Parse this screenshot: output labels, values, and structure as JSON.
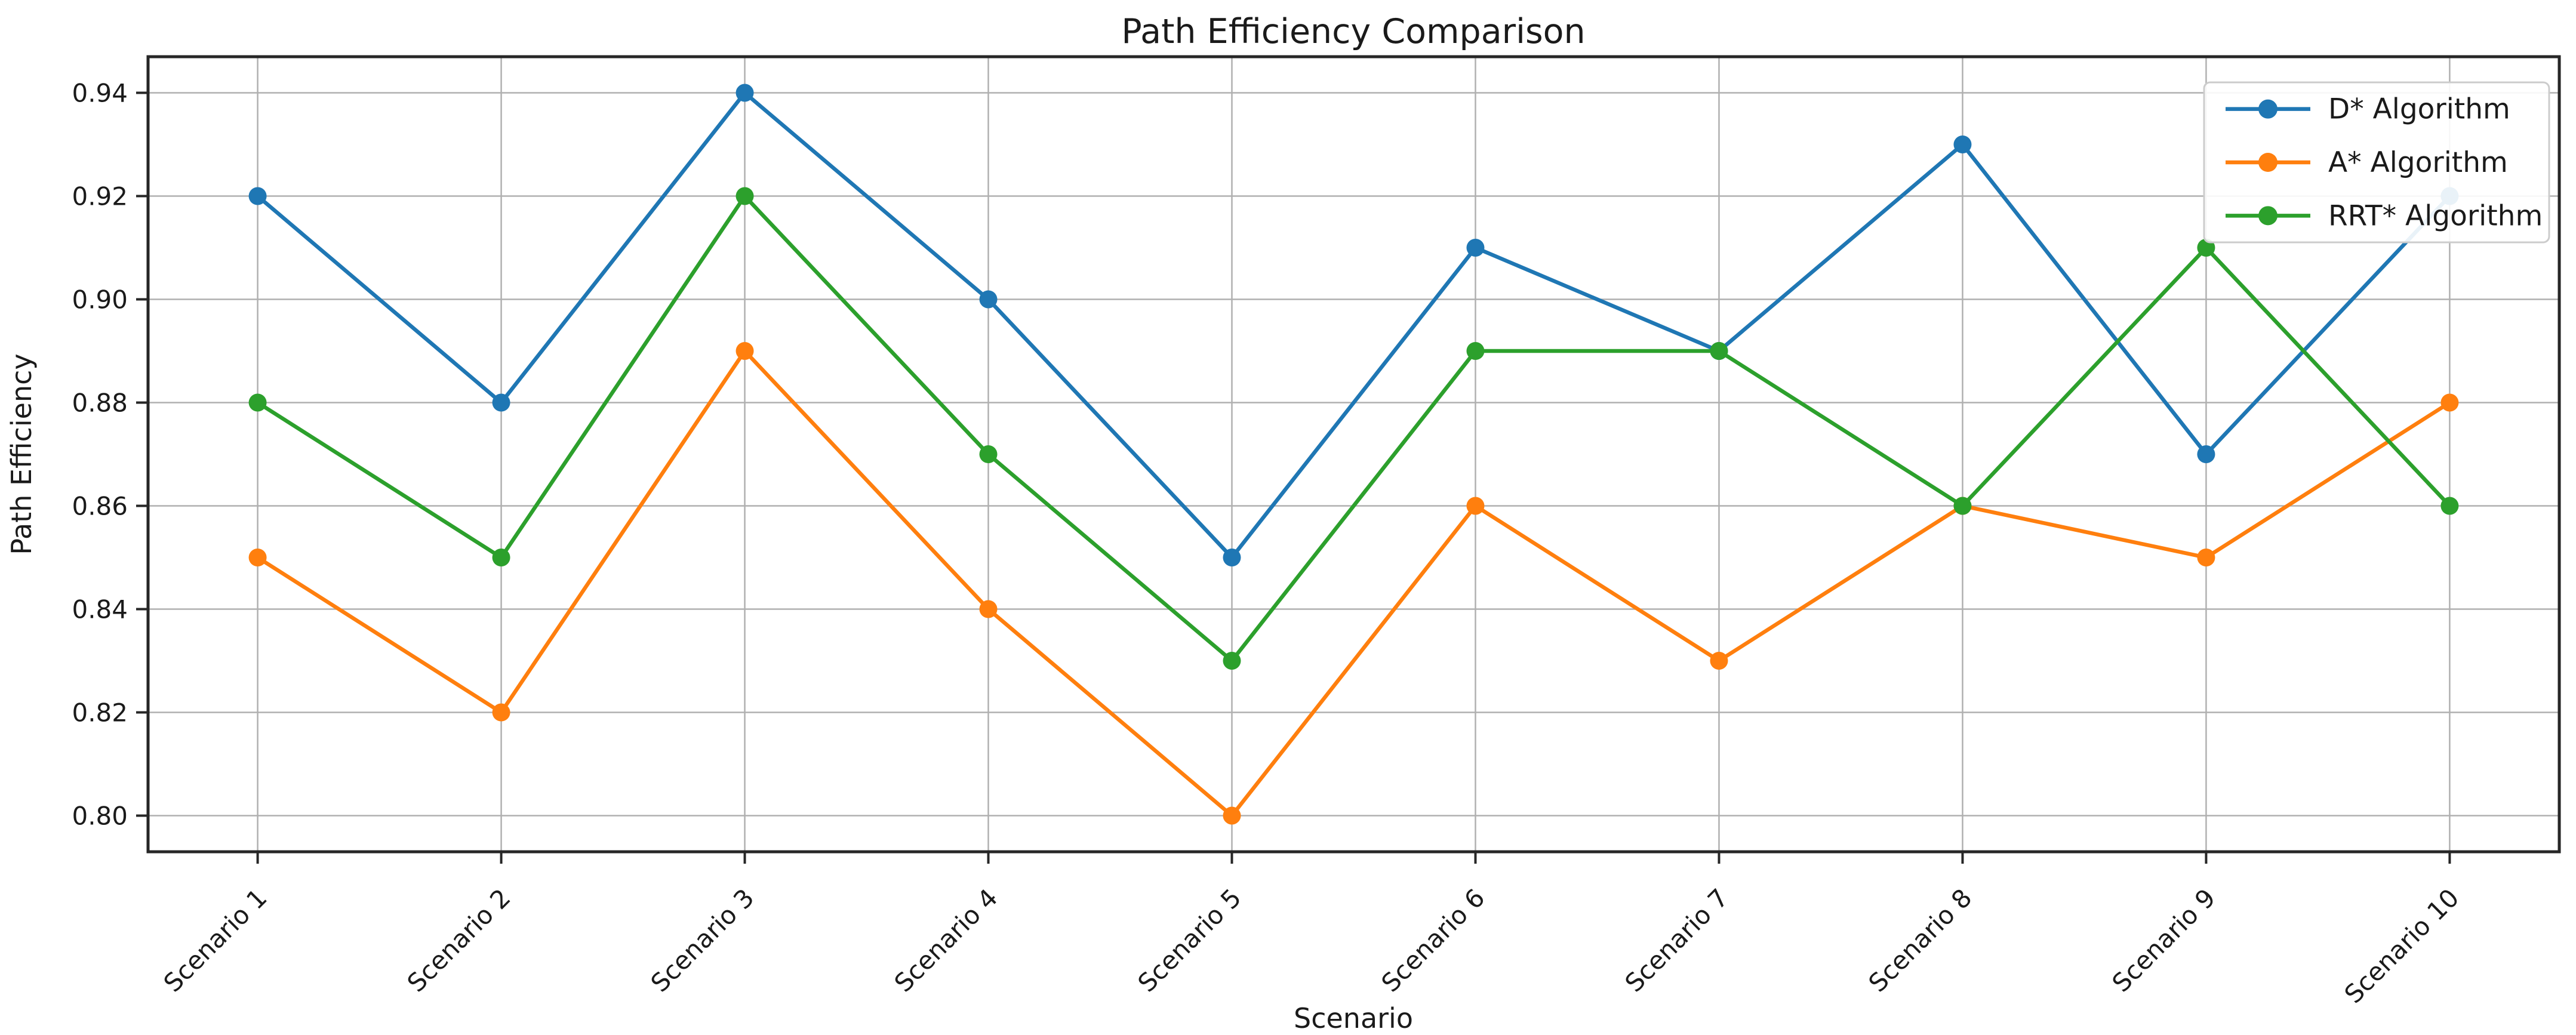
{
  "figure": {
    "background": "#ffffff",
    "frame_color": "#262626",
    "grid_color": "#b0b0b0",
    "text_color": "#1a1a1a",
    "legend_border_color": "#cccccc"
  },
  "chart_data": {
    "type": "line",
    "title": "Path Efficiency Comparison",
    "xlabel": "Scenario",
    "ylabel": "Path Efficiency",
    "categories": [
      "Scenario 1",
      "Scenario 2",
      "Scenario 3",
      "Scenario 4",
      "Scenario 5",
      "Scenario 6",
      "Scenario 7",
      "Scenario 8",
      "Scenario 9",
      "Scenario 10"
    ],
    "series": [
      {
        "name": "D* Algorithm",
        "color": "#1f77b4",
        "values": [
          0.92,
          0.88,
          0.94,
          0.9,
          0.85,
          0.91,
          0.89,
          0.93,
          0.87,
          0.92
        ]
      },
      {
        "name": "A* Algorithm",
        "color": "#ff7f0e",
        "values": [
          0.85,
          0.82,
          0.89,
          0.84,
          0.8,
          0.86,
          0.83,
          0.86,
          0.85,
          0.88
        ]
      },
      {
        "name": "RRT* Algorithm",
        "color": "#2ca02c",
        "values": [
          0.88,
          0.85,
          0.92,
          0.87,
          0.83,
          0.89,
          0.89,
          0.86,
          0.91,
          0.86
        ]
      }
    ],
    "yticks": [
      0.8,
      0.82,
      0.84,
      0.86,
      0.88,
      0.9,
      0.92,
      0.94
    ],
    "ytick_labels": [
      "0.80",
      "0.82",
      "0.84",
      "0.86",
      "0.88",
      "0.90",
      "0.92",
      "0.94"
    ],
    "ylim": [
      0.793,
      0.947
    ],
    "x_margin": 0.45,
    "grid": true,
    "marker": "o",
    "legend": {
      "position": "upper right",
      "entries": [
        "D* Algorithm",
        "A* Algorithm",
        "RRT* Algorithm"
      ]
    }
  }
}
